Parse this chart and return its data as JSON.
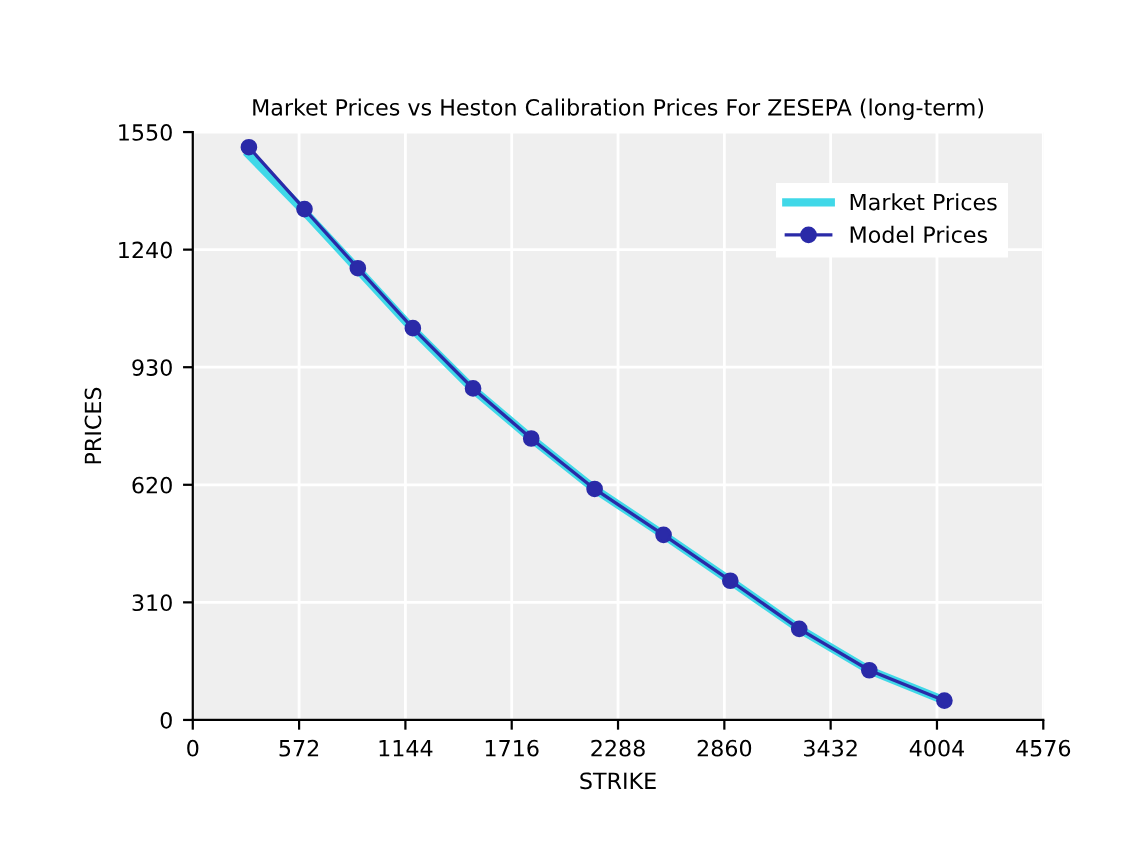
{
  "chart_data": {
    "type": "line",
    "title": "Market Prices vs Heston Calibration Prices For ZESEPA (long-term)",
    "xlabel": "STRIKE",
    "ylabel": "PRICES",
    "x": [
      302,
      601,
      888,
      1184,
      1508,
      1821,
      2162,
      2533,
      2892,
      3263,
      3640,
      4044
    ],
    "series": [
      {
        "name": "Market Prices",
        "color": "#40d8e8",
        "values": [
          1490,
          1340,
          1188,
          1030,
          872,
          742,
          609,
          488,
          367,
          240,
          131,
          51
        ]
      },
      {
        "name": "Model Prices",
        "color": "#2a2aa8",
        "marker": "circle",
        "values": [
          1510,
          1347,
          1191,
          1033,
          874,
          742,
          609,
          488,
          367,
          240,
          131,
          51
        ]
      }
    ],
    "xlim": [
      0,
      4576
    ],
    "xticks": [
      0,
      572,
      1144,
      1716,
      2288,
      2860,
      3432,
      4004,
      4576
    ],
    "ylim": [
      0,
      1550
    ],
    "yticks": [
      0,
      310,
      620,
      930,
      1240,
      1550
    ],
    "grid": true,
    "legend": "top right",
    "line_style": "solid"
  }
}
